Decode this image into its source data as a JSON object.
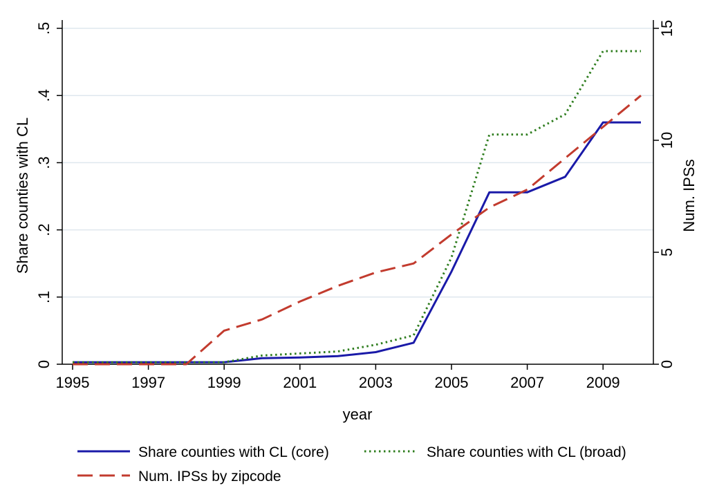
{
  "chart_data": {
    "type": "line",
    "xlabel": "year",
    "ylabel_left": "Share counties with CL",
    "ylabel_right": "Num. IPSs",
    "x": [
      1995,
      1996,
      1997,
      1998,
      1999,
      2000,
      2001,
      2002,
      2003,
      2004,
      2005,
      2006,
      2007,
      2008,
      2009,
      2010
    ],
    "xlim": [
      1995,
      2010
    ],
    "xticks": [
      "1995",
      "1997",
      "1999",
      "2001",
      "2003",
      "2005",
      "2007",
      "2009"
    ],
    "ylim_left": [
      0,
      0.5
    ],
    "yticks_left": [
      ".5",
      ".4",
      ".3",
      ".2",
      ".1",
      "0"
    ],
    "ylim_right": [
      0,
      15
    ],
    "yticks_right": [
      "15",
      "10",
      "5",
      "0"
    ],
    "grid": true,
    "legend_position": "bottom",
    "series": [
      {
        "name": "Share counties with CL (core)",
        "axis": "left",
        "color": "#1a1aa8",
        "style": "solid",
        "values": [
          0.003,
          0.003,
          0.003,
          0.003,
          0.003,
          0.009,
          0.01,
          0.012,
          0.018,
          0.032,
          0.138,
          0.256,
          0.256,
          0.279,
          0.36,
          0.36
        ]
      },
      {
        "name": "Share counties with CL (broad)",
        "axis": "left",
        "color": "#2e7d1e",
        "style": "dotted",
        "values": [
          0.003,
          0.003,
          0.003,
          0.003,
          0.003,
          0.013,
          0.016,
          0.019,
          0.029,
          0.043,
          0.159,
          0.342,
          0.342,
          0.372,
          0.466,
          0.466
        ]
      },
      {
        "name": "Num. IPSs by zipcode",
        "axis": "right",
        "color": "#c23b2e",
        "style": "dashed",
        "values": [
          0,
          0,
          0,
          0,
          1.5,
          2.0,
          2.8,
          3.5,
          4.1,
          4.5,
          5.8,
          7.0,
          7.8,
          9.2,
          10.6,
          12.0
        ]
      }
    ]
  }
}
